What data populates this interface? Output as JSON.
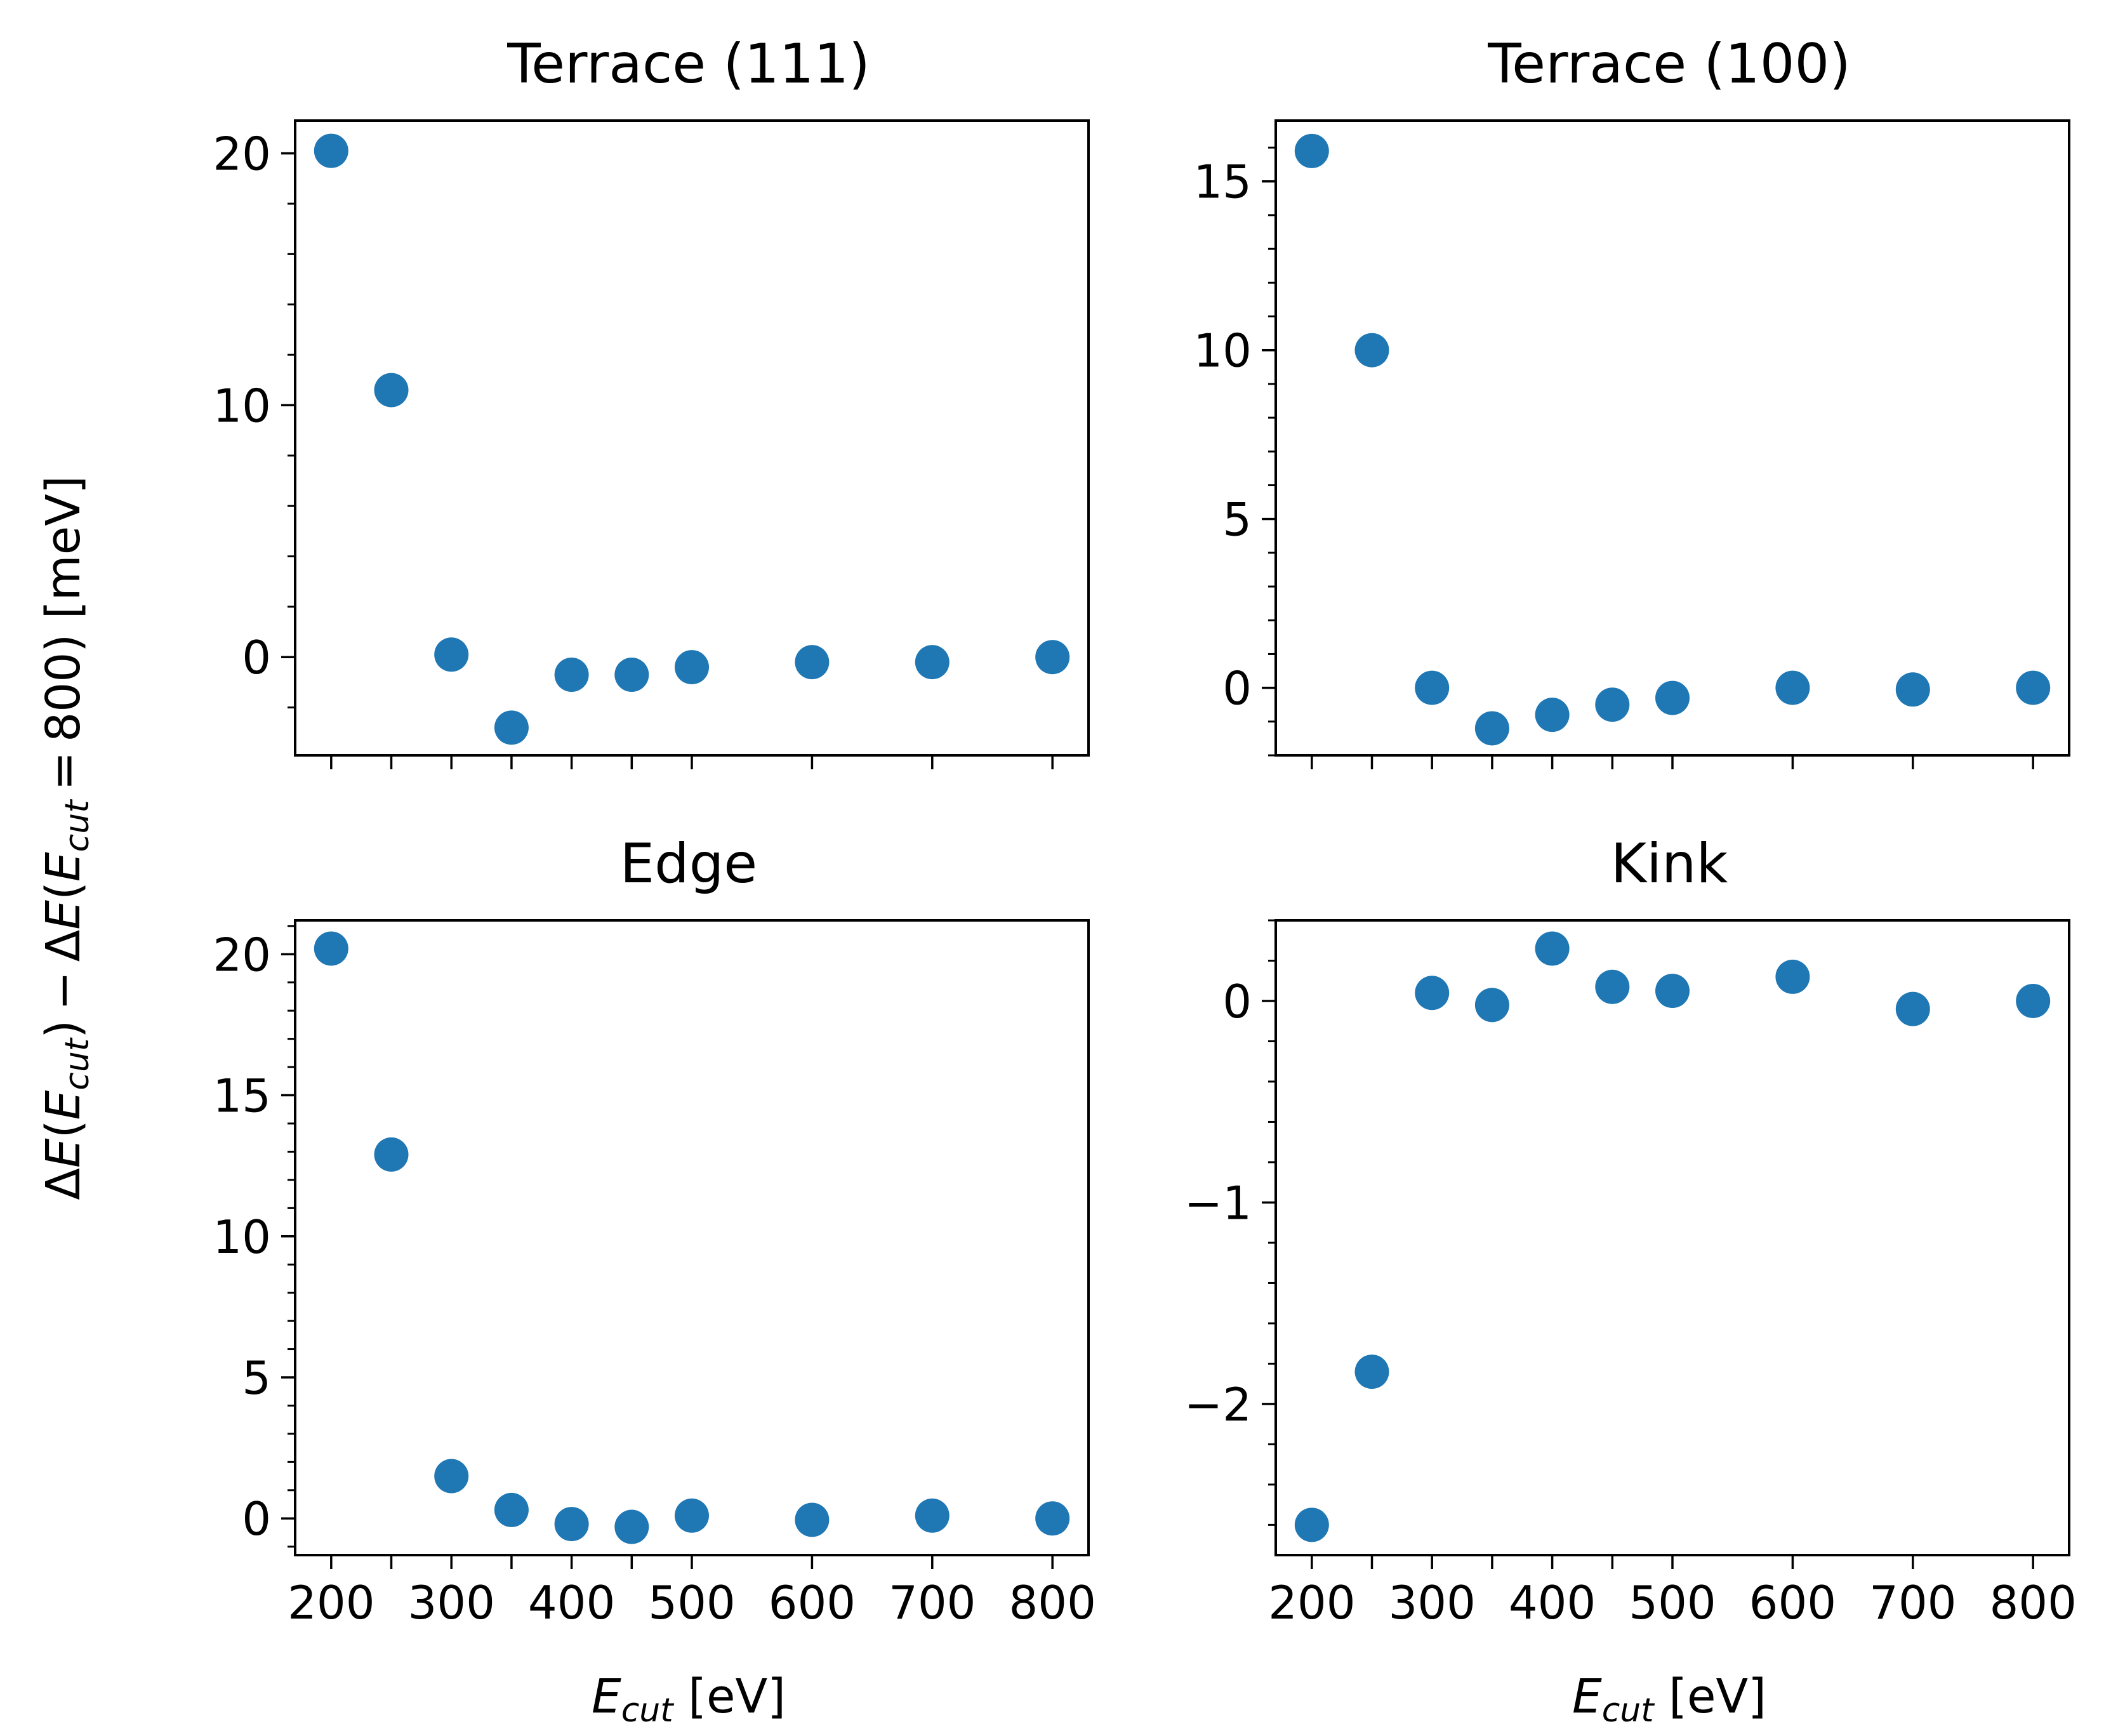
{
  "chart_data": [
    {
      "type": "scatter",
      "title": "Terrace (111)",
      "x": [
        200,
        250,
        300,
        350,
        400,
        450,
        500,
        600,
        700,
        800
      ],
      "y": [
        20.1,
        10.6,
        0.1,
        -2.8,
        -0.7,
        -0.7,
        -0.4,
        -0.2,
        -0.2,
        0.0
      ],
      "xlim": [
        170,
        830
      ],
      "ylim": [
        -3.9,
        21.3
      ],
      "xticks": [
        200,
        250,
        300,
        350,
        400,
        450,
        500,
        600,
        700,
        800
      ],
      "yticks": [
        0,
        10,
        20
      ],
      "ytick_labels": [
        "0",
        "10",
        "20"
      ],
      "yminor_step": 2,
      "show_xtick_labels": false,
      "color": "#1f77b4"
    },
    {
      "type": "scatter",
      "title": "Terrace (100)",
      "x": [
        200,
        250,
        300,
        350,
        400,
        450,
        500,
        600,
        700,
        800
      ],
      "y": [
        15.9,
        10.0,
        0.0,
        -1.2,
        -0.8,
        -0.5,
        -0.3,
        0.0,
        -0.05,
        0.0
      ],
      "xlim": [
        170,
        830
      ],
      "ylim": [
        -2.0,
        16.8
      ],
      "xticks": [
        200,
        250,
        300,
        350,
        400,
        450,
        500,
        600,
        700,
        800
      ],
      "yticks": [
        0,
        5,
        10,
        15
      ],
      "ytick_labels": [
        "0",
        "5",
        "10",
        "15"
      ],
      "yminor_step": 1,
      "show_xtick_labels": false,
      "color": "#1f77b4"
    },
    {
      "type": "scatter",
      "title": "Edge",
      "x": [
        200,
        250,
        300,
        350,
        400,
        450,
        500,
        600,
        700,
        800
      ],
      "y": [
        20.2,
        12.9,
        1.5,
        0.3,
        -0.2,
        -0.3,
        0.1,
        -0.05,
        0.1,
        0.0
      ],
      "xlim": [
        170,
        830
      ],
      "ylim": [
        -1.3,
        21.2
      ],
      "xticks": [
        200,
        250,
        300,
        350,
        400,
        450,
        500,
        600,
        700,
        800
      ],
      "yticks": [
        0,
        5,
        10,
        15,
        20
      ],
      "ytick_labels": [
        "0",
        "5",
        "10",
        "15",
        "20"
      ],
      "yminor_step": 1,
      "show_xtick_labels": true,
      "xtick_labels": [
        "200",
        "300",
        "400",
        "500",
        "600",
        "700",
        "800"
      ],
      "color": "#1f77b4"
    },
    {
      "type": "scatter",
      "title": "Kink",
      "x": [
        200,
        250,
        300,
        350,
        400,
        450,
        500,
        600,
        700,
        800
      ],
      "y": [
        -2.6,
        -1.84,
        0.04,
        -0.02,
        0.26,
        0.07,
        0.05,
        0.12,
        -0.04,
        0.0
      ],
      "xlim": [
        170,
        830
      ],
      "ylim": [
        -2.75,
        0.4
      ],
      "xticks": [
        200,
        250,
        300,
        350,
        400,
        450,
        500,
        600,
        700,
        800
      ],
      "yticks": [
        0,
        -1,
        -2
      ],
      "ytick_labels": [
        "0",
        "−1",
        "−2"
      ],
      "yminor_step": 0.2,
      "show_xtick_labels": true,
      "xtick_labels": [
        "200",
        "300",
        "400",
        "500",
        "600",
        "700",
        "800"
      ],
      "color": "#1f77b4"
    }
  ],
  "labels": {
    "xlabel_symbol": "E",
    "xlabel_subscript": "cut",
    "xlabel_unit": " [eV]",
    "ylabel_parts": [
      "Δ",
      "E",
      "(",
      "E",
      "cut",
      ") − Δ",
      "E",
      "(",
      "E",
      "cut",
      " = 800) [meV]"
    ]
  }
}
